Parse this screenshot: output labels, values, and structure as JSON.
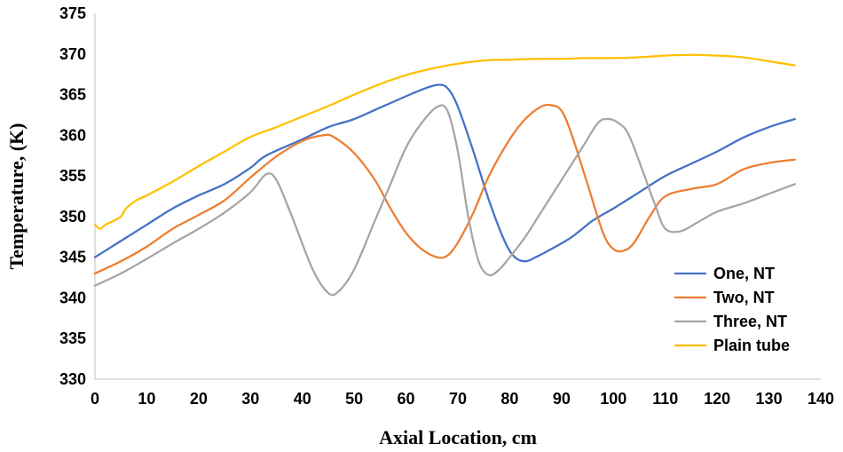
{
  "chart_data": {
    "type": "line",
    "title": "",
    "xlabel": "Axial Location, cm",
    "ylabel": "Temperature, (K)",
    "xlim": [
      0,
      140
    ],
    "ylim": [
      330,
      375
    ],
    "x_ticks": [
      0,
      10,
      20,
      30,
      40,
      50,
      60,
      70,
      80,
      90,
      100,
      110,
      120,
      130,
      140
    ],
    "y_ticks": [
      330,
      335,
      340,
      345,
      350,
      355,
      360,
      365,
      370,
      375
    ],
    "grid": false,
    "legend_position": "bottom-right",
    "series": [
      {
        "name": "One, NT",
        "color": "#4472C4",
        "x": [
          0,
          5,
          10,
          15,
          20,
          25,
          30,
          33,
          40,
          45,
          50,
          55,
          60,
          63,
          66,
          68,
          70,
          73,
          76,
          79,
          81,
          83,
          85,
          88,
          92,
          96,
          100,
          105,
          110,
          115,
          120,
          125,
          130,
          135
        ],
        "y": [
          345,
          347,
          349,
          351,
          352.6,
          354,
          356,
          357.5,
          359.5,
          361,
          362,
          363.4,
          364.8,
          365.6,
          366.2,
          365.8,
          363.5,
          358,
          352,
          347,
          345,
          344.5,
          345,
          346,
          347.5,
          349.5,
          351,
          353,
          355,
          356.5,
          358,
          359.7,
          361,
          362
        ]
      },
      {
        "name": "Two, NT",
        "color": "#ED7D31",
        "x": [
          0,
          5,
          10,
          15,
          20,
          25,
          30,
          35,
          40,
          44,
          46,
          50,
          54,
          57,
          60,
          63,
          66,
          68,
          70,
          73,
          76,
          80,
          83,
          86,
          88,
          90,
          92,
          95,
          98,
          100,
          102,
          104,
          107,
          110,
          115,
          120,
          125,
          130,
          135
        ],
        "y": [
          343,
          344.5,
          346.3,
          348.5,
          350.2,
          352,
          354.8,
          357.4,
          359.3,
          360,
          359.8,
          357.8,
          354.5,
          351,
          348,
          346,
          345,
          345.2,
          346.8,
          350.5,
          355,
          359.5,
          362,
          363.5,
          363.7,
          363,
          360,
          354,
          348,
          346,
          345.8,
          346.8,
          350,
          352.5,
          353.4,
          354,
          355.8,
          356.6,
          357
        ]
      },
      {
        "name": "Three, NT",
        "color": "#A5A5A5",
        "x": [
          0,
          5,
          10,
          15,
          20,
          25,
          30,
          33,
          35,
          38,
          42,
          45,
          47,
          50,
          54,
          57,
          60,
          63,
          66,
          68,
          70,
          72,
          74,
          76,
          78,
          80,
          83,
          86,
          90,
          94,
          97,
          99,
          101,
          103,
          106,
          108,
          110,
          113,
          116,
          120,
          125,
          130,
          135
        ],
        "y": [
          341.5,
          343,
          344.8,
          346.7,
          348.5,
          350.5,
          353,
          355.2,
          354.5,
          350,
          343.5,
          340.6,
          340.8,
          343.5,
          349.5,
          354,
          358.5,
          361.5,
          363.5,
          363,
          358,
          350,
          344.5,
          342.8,
          343.5,
          345,
          347.5,
          350.5,
          354.5,
          358.5,
          361.5,
          362,
          361.5,
          360,
          355,
          351.5,
          348.5,
          348.2,
          349.2,
          350.6,
          351.6,
          352.8,
          354
        ]
      },
      {
        "name": "Plain tube",
        "color": "#FFC000",
        "x": [
          0,
          1,
          2,
          3,
          5,
          6,
          8,
          10,
          15,
          20,
          25,
          30,
          35,
          40,
          45,
          50,
          55,
          60,
          65,
          70,
          75,
          80,
          85,
          90,
          95,
          100,
          105,
          110,
          115,
          120,
          125,
          130,
          135
        ],
        "y": [
          349,
          348.5,
          349,
          349.3,
          350,
          351,
          352,
          352.6,
          354.3,
          356.2,
          358,
          359.8,
          361,
          362.3,
          363.6,
          365,
          366.3,
          367.4,
          368.2,
          368.8,
          369.2,
          369.3,
          369.4,
          369.4,
          369.5,
          369.5,
          369.6,
          369.8,
          369.9,
          369.8,
          369.6,
          369.1,
          368.6
        ]
      }
    ]
  }
}
